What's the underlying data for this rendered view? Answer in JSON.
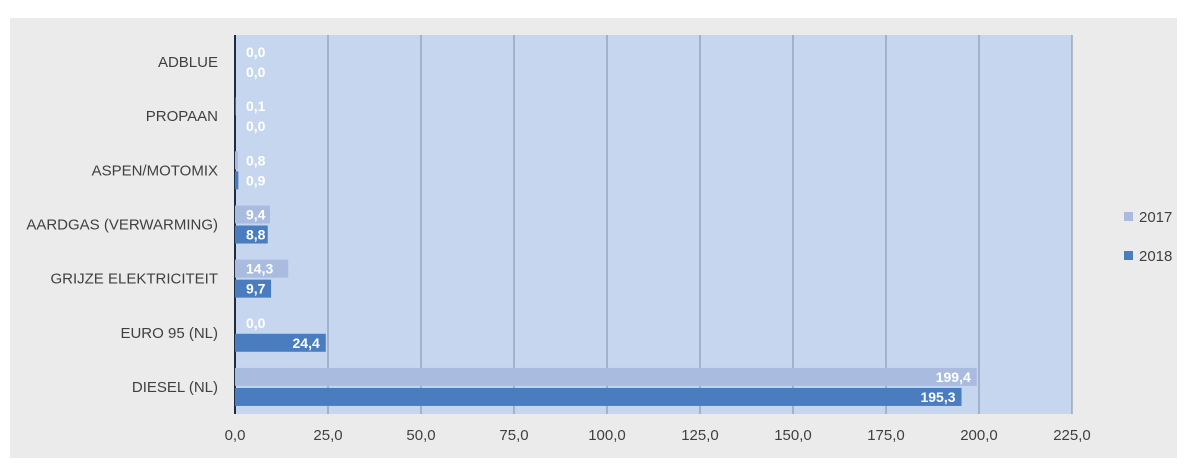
{
  "colors": {
    "plot_background": "#c6d6ee",
    "outer_background": "#ebebeb",
    "gridline": "#8a9bb5",
    "series_2017": "#a9bce0",
    "series_2018": "#4a7cc0"
  },
  "chart_data": {
    "type": "bar",
    "orientation": "horizontal",
    "categories": [
      "ADBLUE",
      "PROPAAN",
      "ASPEN/MOTOMIX",
      "AARDGAS (VERWARMING)",
      "GRIJZE ELEKTRICITEIT",
      "EURO 95 (NL)",
      "DIESEL (NL)"
    ],
    "series": [
      {
        "name": "2017",
        "values": [
          0.0,
          0.1,
          0.8,
          9.4,
          14.3,
          0.0,
          199.4
        ],
        "labels": [
          "0,0",
          "0,1",
          "0,8",
          "9,4",
          "14,3",
          "0,0",
          "199,4"
        ]
      },
      {
        "name": "2018",
        "values": [
          0.0,
          0.0,
          0.9,
          8.8,
          9.7,
          24.4,
          195.3
        ],
        "labels": [
          "0,0",
          "0,0",
          "0,9",
          "8,8",
          "9,7",
          "24,4",
          "195,3"
        ]
      }
    ],
    "xlim": [
      0,
      225
    ],
    "xticks": [
      "0,0",
      "25,0",
      "50,0",
      "75,0",
      "100,0",
      "125,0",
      "150,0",
      "175,0",
      "200,0",
      "225,0"
    ],
    "xtick_step": 25,
    "grid": true,
    "legend_position": "right"
  }
}
